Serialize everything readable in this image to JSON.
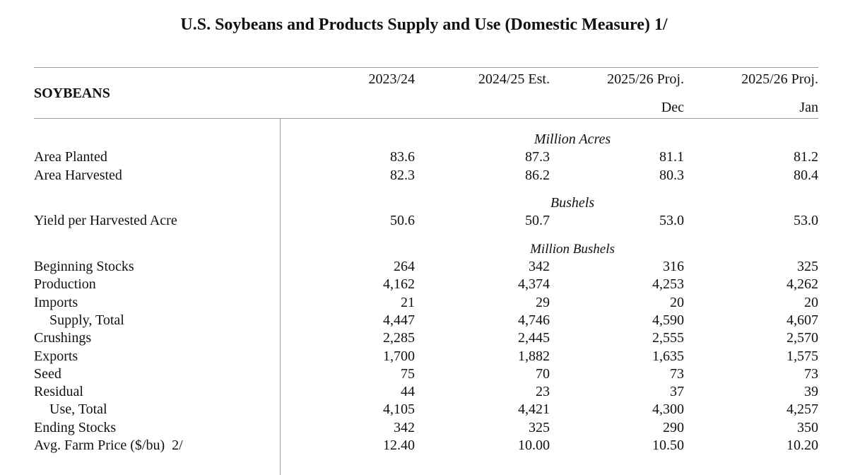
{
  "title": "U.S. Soybeans and Products Supply and Use (Domestic Measure)  1/",
  "section": "SOYBEANS",
  "columns": [
    {
      "label": "2023/24",
      "sub": ""
    },
    {
      "label": "2024/25 Est.",
      "sub": ""
    },
    {
      "label": "2025/26 Proj.",
      "sub": "Dec"
    },
    {
      "label": "2025/26 Proj.",
      "sub": "Jan"
    }
  ],
  "units": {
    "acres": "Million Acres",
    "bushels": "Bushels",
    "million_bushels": "Million Bushels"
  },
  "rows": [
    {
      "label": "Area Planted",
      "values": [
        "83.6",
        "87.3",
        "81.1",
        "81.2"
      ]
    },
    {
      "label": "Area Harvested",
      "values": [
        "82.3",
        "86.2",
        "80.3",
        "80.4"
      ]
    },
    {
      "label": "Yield per Harvested Acre",
      "values": [
        "50.6",
        "50.7",
        "53.0",
        "53.0"
      ]
    },
    {
      "label": "Beginning Stocks",
      "values": [
        "264",
        "342",
        "316",
        "325"
      ]
    },
    {
      "label": "Production",
      "values": [
        "4,162",
        "4,374",
        "4,253",
        "4,262"
      ]
    },
    {
      "label": "Imports",
      "values": [
        "21",
        "29",
        "20",
        "20"
      ]
    },
    {
      "label": "Supply, Total",
      "values": [
        "4,447",
        "4,746",
        "4,590",
        "4,607"
      ]
    },
    {
      "label": "Crushings",
      "values": [
        "2,285",
        "2,445",
        "2,555",
        "2,570"
      ]
    },
    {
      "label": "Exports",
      "values": [
        "1,700",
        "1,882",
        "1,635",
        "1,575"
      ]
    },
    {
      "label": "Seed",
      "values": [
        "75",
        "70",
        "73",
        "73"
      ]
    },
    {
      "label": "Residual",
      "values": [
        "44",
        "23",
        "37",
        "39"
      ]
    },
    {
      "label": "Use, Total",
      "values": [
        "4,105",
        "4,421",
        "4,300",
        "4,257"
      ]
    },
    {
      "label": "Ending Stocks",
      "values": [
        "342",
        "325",
        "290",
        "350"
      ]
    },
    {
      "label": "Avg. Farm Price ($/bu)  2/",
      "values": [
        "12.40",
        "10.00",
        "10.50",
        "10.20"
      ]
    }
  ]
}
